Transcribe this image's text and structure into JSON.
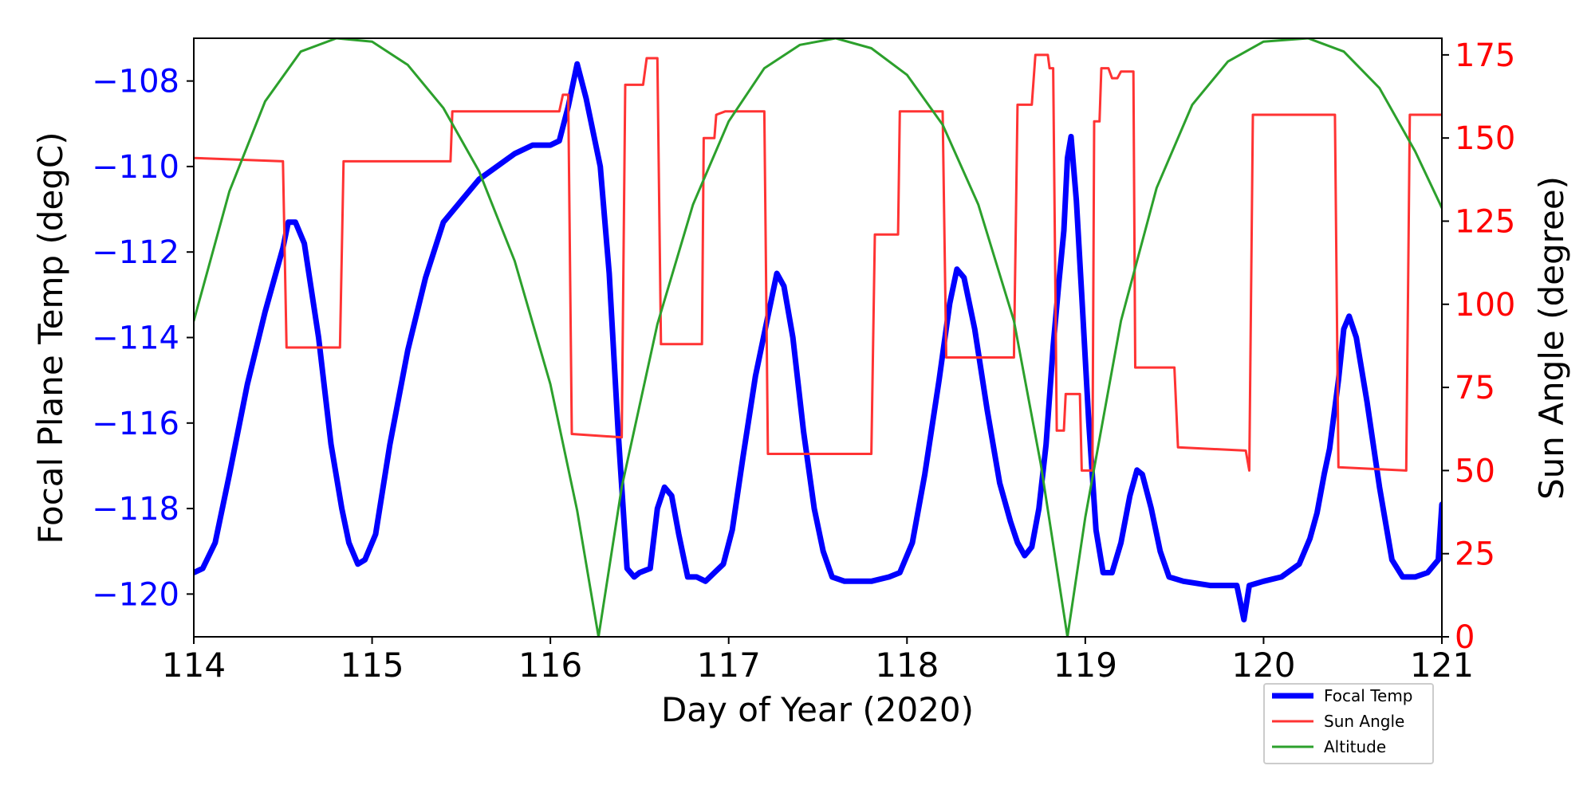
{
  "chart_data": {
    "type": "line",
    "xlabel": "Day of Year (2020)",
    "ylabel_left": "Focal Plane Temp (degC)",
    "ylabel_right": "Sun Angle (degree)",
    "xlim": [
      114,
      121
    ],
    "ylim_left": [
      -121,
      -107
    ],
    "ylim_right": [
      0,
      180
    ],
    "x_ticks": [
      114,
      115,
      116,
      117,
      118,
      119,
      120,
      121
    ],
    "y_ticks_left": [
      -108,
      -110,
      -112,
      -114,
      -116,
      -118,
      -120
    ],
    "y_ticks_right": [
      0,
      25,
      50,
      75,
      100,
      125,
      150,
      175
    ],
    "colors": {
      "left_axis": "#0000ff",
      "right_axis": "#ff0000"
    },
    "legend_position": "bottom-right",
    "series": [
      {
        "name": "Focal Temp",
        "axis": "left",
        "color": "#0000ff",
        "points": [
          [
            114.0,
            -119.5
          ],
          [
            114.05,
            -119.4
          ],
          [
            114.12,
            -118.8
          ],
          [
            114.2,
            -117.2
          ],
          [
            114.3,
            -115.1
          ],
          [
            114.4,
            -113.4
          ],
          [
            114.5,
            -111.9
          ],
          [
            114.53,
            -111.3
          ],
          [
            114.57,
            -111.3
          ],
          [
            114.62,
            -111.8
          ],
          [
            114.7,
            -114.0
          ],
          [
            114.77,
            -116.5
          ],
          [
            114.83,
            -118.0
          ],
          [
            114.87,
            -118.8
          ],
          [
            114.92,
            -119.3
          ],
          [
            114.96,
            -119.2
          ],
          [
            115.02,
            -118.6
          ],
          [
            115.1,
            -116.5
          ],
          [
            115.2,
            -114.3
          ],
          [
            115.3,
            -112.6
          ],
          [
            115.4,
            -111.3
          ],
          [
            115.5,
            -110.8
          ],
          [
            115.6,
            -110.3
          ],
          [
            115.7,
            -110.0
          ],
          [
            115.8,
            -109.7
          ],
          [
            115.9,
            -109.5
          ],
          [
            116.0,
            -109.5
          ],
          [
            116.05,
            -109.4
          ],
          [
            116.1,
            -108.6
          ],
          [
            116.15,
            -107.6
          ],
          [
            116.2,
            -108.4
          ],
          [
            116.28,
            -110.0
          ],
          [
            116.33,
            -112.5
          ],
          [
            116.38,
            -116.2
          ],
          [
            116.43,
            -119.4
          ],
          [
            116.47,
            -119.6
          ],
          [
            116.5,
            -119.5
          ],
          [
            116.56,
            -119.4
          ],
          [
            116.6,
            -118.0
          ],
          [
            116.64,
            -117.5
          ],
          [
            116.68,
            -117.7
          ],
          [
            116.72,
            -118.6
          ],
          [
            116.77,
            -119.6
          ],
          [
            116.82,
            -119.6
          ],
          [
            116.87,
            -119.7
          ],
          [
            116.92,
            -119.5
          ],
          [
            116.97,
            -119.3
          ],
          [
            117.02,
            -118.5
          ],
          [
            117.08,
            -116.8
          ],
          [
            117.15,
            -114.9
          ],
          [
            117.22,
            -113.5
          ],
          [
            117.27,
            -112.5
          ],
          [
            117.31,
            -112.8
          ],
          [
            117.36,
            -114.0
          ],
          [
            117.42,
            -116.2
          ],
          [
            117.48,
            -118.0
          ],
          [
            117.53,
            -119.0
          ],
          [
            117.58,
            -119.6
          ],
          [
            117.65,
            -119.7
          ],
          [
            117.8,
            -119.7
          ],
          [
            117.9,
            -119.6
          ],
          [
            117.96,
            -119.5
          ],
          [
            118.03,
            -118.8
          ],
          [
            118.1,
            -117.2
          ],
          [
            118.18,
            -115.0
          ],
          [
            118.24,
            -113.2
          ],
          [
            118.28,
            -112.4
          ],
          [
            118.32,
            -112.6
          ],
          [
            118.38,
            -113.8
          ],
          [
            118.45,
            -115.7
          ],
          [
            118.52,
            -117.4
          ],
          [
            118.58,
            -118.3
          ],
          [
            118.62,
            -118.8
          ],
          [
            118.66,
            -119.1
          ],
          [
            118.7,
            -118.9
          ],
          [
            118.74,
            -118.0
          ],
          [
            118.78,
            -116.5
          ],
          [
            118.82,
            -114.2
          ],
          [
            118.85,
            -112.8
          ],
          [
            118.88,
            -111.5
          ],
          [
            118.9,
            -109.8
          ],
          [
            118.92,
            -109.3
          ],
          [
            118.95,
            -110.8
          ],
          [
            118.98,
            -113.0
          ],
          [
            119.02,
            -116.0
          ],
          [
            119.06,
            -118.5
          ],
          [
            119.1,
            -119.5
          ],
          [
            119.15,
            -119.5
          ],
          [
            119.2,
            -118.8
          ],
          [
            119.25,
            -117.7
          ],
          [
            119.29,
            -117.1
          ],
          [
            119.32,
            -117.2
          ],
          [
            119.37,
            -118.0
          ],
          [
            119.42,
            -119.0
          ],
          [
            119.47,
            -119.6
          ],
          [
            119.55,
            -119.7
          ],
          [
            119.7,
            -119.8
          ],
          [
            119.85,
            -119.8
          ],
          [
            119.89,
            -120.6
          ],
          [
            119.92,
            -119.8
          ],
          [
            120.0,
            -119.7
          ],
          [
            120.1,
            -119.6
          ],
          [
            120.2,
            -119.3
          ],
          [
            120.26,
            -118.7
          ],
          [
            120.3,
            -118.1
          ],
          [
            120.34,
            -117.2
          ],
          [
            120.37,
            -116.6
          ],
          [
            120.42,
            -115.0
          ],
          [
            120.45,
            -113.8
          ],
          [
            120.48,
            -113.5
          ],
          [
            120.52,
            -114.0
          ],
          [
            120.58,
            -115.5
          ],
          [
            120.65,
            -117.5
          ],
          [
            120.72,
            -119.2
          ],
          [
            120.78,
            -119.6
          ],
          [
            120.85,
            -119.6
          ],
          [
            120.92,
            -119.5
          ],
          [
            120.98,
            -119.2
          ],
          [
            121.0,
            -117.9
          ]
        ]
      },
      {
        "name": "Sun Angle",
        "axis": "right",
        "color": "#ff3333",
        "points": [
          [
            114.0,
            144
          ],
          [
            114.5,
            143
          ],
          [
            114.52,
            87
          ],
          [
            114.82,
            87
          ],
          [
            114.84,
            143
          ],
          [
            115.44,
            143
          ],
          [
            115.45,
            158
          ],
          [
            116.05,
            158
          ],
          [
            116.07,
            163
          ],
          [
            116.1,
            163
          ],
          [
            116.12,
            61
          ],
          [
            116.4,
            60
          ],
          [
            116.42,
            166
          ],
          [
            116.52,
            166
          ],
          [
            116.54,
            174
          ],
          [
            116.6,
            174
          ],
          [
            116.62,
            88
          ],
          [
            116.85,
            88
          ],
          [
            116.86,
            150
          ],
          [
            116.92,
            150
          ],
          [
            116.93,
            157
          ],
          [
            116.98,
            158
          ],
          [
            117.2,
            158
          ],
          [
            117.22,
            55
          ],
          [
            117.8,
            55
          ],
          [
            117.82,
            121
          ],
          [
            117.95,
            121
          ],
          [
            117.96,
            158
          ],
          [
            118.2,
            158
          ],
          [
            118.22,
            84
          ],
          [
            118.6,
            84
          ],
          [
            118.62,
            160
          ],
          [
            118.7,
            160
          ],
          [
            118.72,
            175
          ],
          [
            118.79,
            175
          ],
          [
            118.8,
            171
          ],
          [
            118.82,
            171
          ],
          [
            118.84,
            62
          ],
          [
            118.88,
            62
          ],
          [
            118.89,
            73
          ],
          [
            118.97,
            73
          ],
          [
            118.98,
            50
          ],
          [
            119.04,
            50
          ],
          [
            119.05,
            155
          ],
          [
            119.08,
            155
          ],
          [
            119.09,
            171
          ],
          [
            119.13,
            171
          ],
          [
            119.15,
            168
          ],
          [
            119.18,
            168
          ],
          [
            119.2,
            170
          ],
          [
            119.27,
            170
          ],
          [
            119.28,
            81
          ],
          [
            119.5,
            81
          ],
          [
            119.52,
            57
          ],
          [
            119.9,
            56
          ],
          [
            119.92,
            50
          ],
          [
            119.94,
            157
          ],
          [
            120.4,
            157
          ],
          [
            120.42,
            51
          ],
          [
            120.8,
            50
          ],
          [
            120.82,
            157
          ],
          [
            121.0,
            157
          ]
        ]
      },
      {
        "name": "Altitude",
        "axis": "right",
        "color": "#2ca02c",
        "points": [
          [
            114.0,
            95
          ],
          [
            114.2,
            134
          ],
          [
            114.4,
            161
          ],
          [
            114.6,
            176
          ],
          [
            114.8,
            180
          ],
          [
            115.0,
            179
          ],
          [
            115.2,
            172
          ],
          [
            115.4,
            159
          ],
          [
            115.6,
            140
          ],
          [
            115.8,
            113
          ],
          [
            116.0,
            76
          ],
          [
            116.15,
            38
          ],
          [
            116.27,
            0
          ],
          [
            116.4,
            45
          ],
          [
            116.6,
            94
          ],
          [
            116.8,
            130
          ],
          [
            117.0,
            155
          ],
          [
            117.2,
            171
          ],
          [
            117.4,
            178
          ],
          [
            117.6,
            180
          ],
          [
            117.8,
            177
          ],
          [
            118.0,
            169
          ],
          [
            118.2,
            154
          ],
          [
            118.4,
            130
          ],
          [
            118.6,
            95
          ],
          [
            118.75,
            52
          ],
          [
            118.9,
            0
          ],
          [
            119.0,
            36
          ],
          [
            119.2,
            95
          ],
          [
            119.4,
            135
          ],
          [
            119.6,
            160
          ],
          [
            119.8,
            173
          ],
          [
            120.0,
            179
          ],
          [
            120.25,
            180
          ],
          [
            120.45,
            176
          ],
          [
            120.65,
            165
          ],
          [
            120.85,
            146
          ],
          [
            121.0,
            129
          ]
        ]
      }
    ]
  }
}
